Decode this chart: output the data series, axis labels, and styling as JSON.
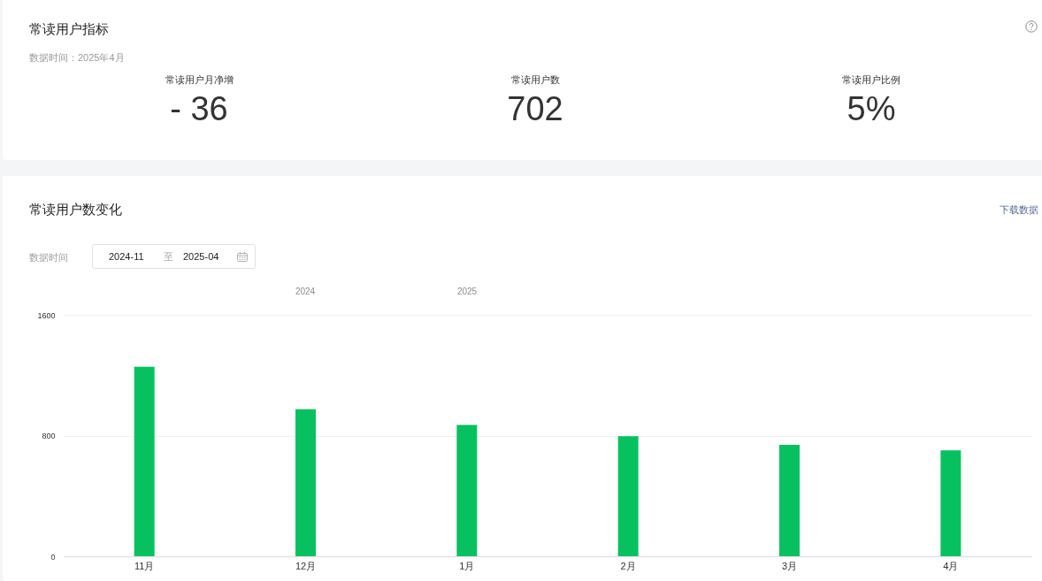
{
  "chart_data": [
    {
      "type": "other",
      "title": "常读用户指标",
      "subtitle": "数据时间：2025年4月",
      "categories": [
        "常读用户月净增",
        "常读用户数",
        "常读用户比例"
      ],
      "value_labels": [
        "- 36",
        "702",
        "5%"
      ]
    },
    {
      "type": "bar",
      "title": "常读用户数变化",
      "categories": [
        "11月",
        "12月",
        "1月",
        "2月",
        "3月",
        "4月"
      ],
      "values": [
        1255,
        975,
        870,
        795,
        738,
        702
      ],
      "color": "#07c160",
      "ylim": [
        0,
        1600
      ],
      "yticks": [
        0,
        800,
        1600
      ],
      "grid": "y",
      "annotations": [
        "下载数据",
        "数据时间",
        "2024-11",
        "至",
        "2025-04",
        "2024",
        "2025"
      ]
    }
  ]
}
